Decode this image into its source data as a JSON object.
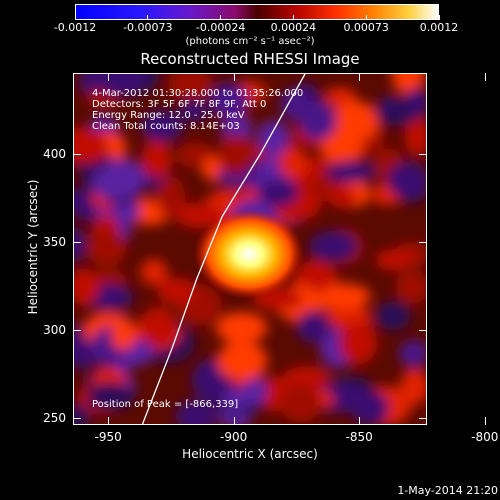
{
  "colorbar": {
    "ticks": [
      "-0.0012",
      "-0.00073",
      "-0.00024",
      "0.00024",
      "0.00073",
      "0.0012"
    ],
    "unit": "(photons cm⁻² s⁻¹ asec⁻²)"
  },
  "title": "Reconstructed RHESSI Image",
  "info": {
    "time_range": "4-Mar-2012 01:30:28.000 to 01:35:26.000",
    "detectors": "Detectors: 3F 5F 6F 7F 8F 9F, Att 0",
    "energy": "Energy Range: 12.0 - 25.0 keV",
    "clean": "Clean    Total counts: 8.14E+03",
    "peak": "Position of Peak = [-866,339]"
  },
  "chart_data": {
    "type": "heatmap",
    "title": "Reconstructed RHESSI Image",
    "xlabel": "Heliocentric X (arcsec)",
    "ylabel": "Heliocentric Y (arcsec)",
    "x_ticks": [
      "-950",
      "-900",
      "-850",
      "-800"
    ],
    "y_ticks": [
      "250",
      "300",
      "350",
      "400"
    ],
    "x_tick_values": [
      -950,
      -900,
      -850,
      -800
    ],
    "y_tick_values": [
      250,
      300,
      350,
      400
    ],
    "xlim": [
      -964,
      -823
    ],
    "ylim": [
      246,
      446
    ],
    "peak": [
      -866,
      339
    ],
    "limb_curve": [
      [
        -937,
        246
      ],
      [
        -925,
        290
      ],
      [
        -915,
        330
      ],
      [
        -905,
        365
      ],
      [
        -890,
        400
      ],
      [
        -872,
        446
      ]
    ]
  },
  "footer": {
    "datestamp": "1-May-2014 21:20"
  }
}
